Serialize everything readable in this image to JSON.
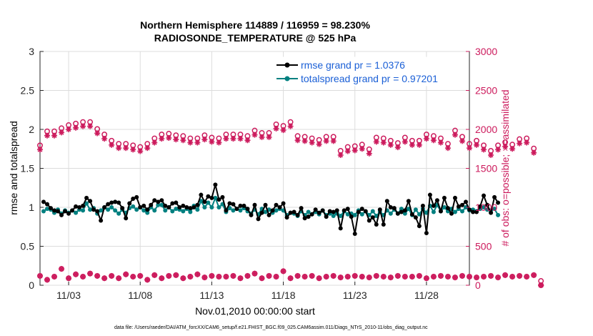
{
  "chart_data": {
    "type": "line",
    "title_line1": "Northern Hemisphere 114889 / 116959 = 98.230%",
    "title_line2": "RADIOSONDE_TEMPERATURE @ 525 hPa",
    "ylabel_left": "rmse and totalspread",
    "ylabel_right": "# of obs: o=possible; ×=assimilated",
    "xlabel": "Nov.01,2010 00:00:00 start",
    "footer": "data file: /Users/raeder/DAI/ATM_forcXX/CAM6_setup/f.e21.FHIST_BGC.f09_025.CAM6assim.011/Diags_NTrS_2010-11/obs_diag_output.nc",
    "ylim_left": [
      0,
      3
    ],
    "ylim_right": [
      0,
      3000
    ],
    "xlim": [
      1,
      31
    ],
    "y_ticks_left": [
      "0",
      "0.5",
      "1",
      "1.5",
      "2",
      "2.5",
      "3"
    ],
    "y_ticks_right": [
      "0",
      "500",
      "1000",
      "1500",
      "2000",
      "2500",
      "3000"
    ],
    "x_ticks": [
      {
        "x": 3,
        "label": "11/03"
      },
      {
        "x": 8,
        "label": "11/08"
      },
      {
        "x": 13,
        "label": "11/13"
      },
      {
        "x": 18,
        "label": "11/18"
      },
      {
        "x": 23,
        "label": "11/23"
      },
      {
        "x": 28,
        "label": "11/28"
      }
    ],
    "grid": true,
    "legend_placement": "top-right",
    "colors": {
      "rmse": "#000000",
      "spread": "#008080",
      "count": "#cc1a5c",
      "legend_text": "#1a5fd6"
    },
    "series": [
      {
        "name": "rmse grand pr = 1.0376",
        "axis": "left",
        "x_start": 1.25,
        "x_step": 0.25,
        "values": [
          1.07,
          1.04,
          0.99,
          0.96,
          0.95,
          0.9,
          0.95,
          0.92,
          0.96,
          1.01,
          1.0,
          1.02,
          1.12,
          1.08,
          0.97,
          0.95,
          0.83,
          1.0,
          1.04,
          1.06,
          1.07,
          1.06,
          0.99,
          0.86,
          1.05,
          1.11,
          1.13,
          1.0,
          1.02,
          0.97,
          1.03,
          1.09,
          1.07,
          1.09,
          1.02,
          1.0,
          1.05,
          1.06,
          1.0,
          1.02,
          1.0,
          0.99,
          1.0,
          1.03,
          1.16,
          1.07,
          1.14,
          1.12,
          1.29,
          1.1,
          1.13,
          0.96,
          1.05,
          1.04,
          0.98,
          1.02,
          1.02,
          0.98,
          0.9,
          1.03,
          0.85,
          0.93,
          1.03,
          0.9,
          0.96,
          1.03,
          1.0,
          1.05,
          0.87,
          0.93,
          0.94,
          0.9,
          0.99,
          0.86,
          0.88,
          0.91,
          0.97,
          0.93,
          0.96,
          0.88,
          0.95,
          0.94,
          0.96,
          0.73,
          0.96,
          0.98,
          0.88,
          0.66,
          0.94,
          0.98,
          0.95,
          0.83,
          0.87,
          0.78,
          0.97,
          0.78,
          1.08,
          1.0,
          0.99,
          0.92,
          0.94,
          0.96,
          1.08,
          0.91,
          0.87,
          0.76,
          1.02,
          0.67,
          1.16,
          1.02,
          1.09,
          0.95,
          1.12,
          0.99,
          0.92,
          1.12,
          1.01,
          1.03,
          1.07,
          0.97,
          0.94,
          0.94,
          1.01,
          1.15,
          1.03,
          0.93,
          1.13,
          1.06
        ]
      },
      {
        "name": "totalspread grand pr = 0.97201",
        "axis": "left",
        "x_start": 1.25,
        "x_step": 0.25,
        "values": [
          0.95,
          0.98,
          0.97,
          0.93,
          0.97,
          0.92,
          0.96,
          0.93,
          0.96,
          0.93,
          0.97,
          0.96,
          1.05,
          0.97,
          0.99,
          0.92,
          0.96,
          1.0,
          0.97,
          1.0,
          0.96,
          0.92,
          0.97,
          0.93,
          0.99,
          1.01,
          0.97,
          1.0,
          0.96,
          0.93,
          1.0,
          0.96,
          1.03,
          1.03,
          0.96,
          1.0,
          0.95,
          0.98,
          0.97,
          0.95,
          0.98,
          0.94,
          1.02,
          0.97,
          1.08,
          1.0,
          1.06,
          1.0,
          1.12,
          1.0,
          1.04,
          0.94,
          0.99,
          0.96,
          0.98,
          0.96,
          0.99,
          0.95,
          0.92,
          0.97,
          0.91,
          0.98,
          0.94,
          0.97,
          0.93,
          0.96,
          0.98,
          0.96,
          0.9,
          0.93,
          0.92,
          0.89,
          0.95,
          0.9,
          0.94,
          0.91,
          0.94,
          0.91,
          0.96,
          0.9,
          0.92,
          0.89,
          0.92,
          0.89,
          0.95,
          0.91,
          0.92,
          0.9,
          0.96,
          0.91,
          0.95,
          0.9,
          0.95,
          0.89,
          0.94,
          0.9,
          0.96,
          0.92,
          0.97,
          0.92,
          0.98,
          0.92,
          0.98,
          0.9,
          0.97,
          0.91,
          0.98,
          0.93,
          1.02,
          0.94,
          1.03,
          0.95,
          1.0,
          0.95,
          0.98,
          0.94,
          0.98,
          0.95,
          1.0,
          0.96,
          0.97,
          0.95,
          0.98,
          1.0,
          0.97,
          0.96,
          0.98,
          0.9
        ]
      },
      {
        "name": "obs possible/assimilated",
        "axis": "right",
        "x_start": 1.0,
        "x_step": 0.5,
        "possible": [
          1740,
          1920,
          1920,
          1960,
          2000,
          2020,
          2040,
          2040,
          1950,
          1880,
          1800,
          1760,
          1760,
          1740,
          1720,
          1760,
          1830,
          1880,
          1890,
          1870,
          1860,
          1830,
          1830,
          1870,
          1840,
          1830,
          1880,
          1880,
          1880,
          1860,
          1930,
          1900,
          1900,
          2010,
          1990,
          2040,
          1860,
          1850,
          1830,
          1810,
          1850,
          1850,
          1670,
          1720,
          1730,
          1750,
          1690,
          1840,
          1830,
          1800,
          1770,
          1840,
          1800,
          1800,
          1880,
          1860,
          1830,
          1760,
          1930,
          1850,
          1760,
          1800,
          1740,
          1670,
          1740,
          1780,
          1750,
          1820,
          1830,
          1700,
          0
        ],
        "assimilated": [
          1740,
          1920,
          1920,
          1960,
          2000,
          2020,
          2040,
          2040,
          1950,
          1880,
          1800,
          1760,
          1760,
          1740,
          1720,
          1760,
          1830,
          1880,
          1890,
          1870,
          1860,
          1830,
          1830,
          1870,
          1840,
          1830,
          1880,
          1880,
          1880,
          1860,
          1930,
          1900,
          1900,
          2010,
          1990,
          2040,
          1860,
          1850,
          1830,
          1810,
          1850,
          1850,
          1670,
          1720,
          1730,
          1750,
          1690,
          1840,
          1830,
          1800,
          1770,
          1840,
          1800,
          1800,
          1880,
          1860,
          1830,
          1760,
          1930,
          1850,
          1760,
          1800,
          1740,
          1670,
          1740,
          1780,
          1750,
          1820,
          1830,
          1700,
          0
        ],
        "low_possible": [
          120,
          70,
          110,
          210,
          90,
          140,
          110,
          150,
          120,
          90,
          120,
          90,
          140,
          110,
          120,
          70,
          130,
          90,
          120,
          130,
          90,
          110,
          140,
          100,
          120,
          110,
          110,
          120,
          90,
          120,
          150,
          90,
          120,
          110,
          180,
          90,
          120,
          110,
          120,
          90,
          110,
          120,
          100,
          110,
          120,
          110,
          100,
          120,
          110,
          100,
          120,
          110,
          110,
          120,
          90,
          110,
          120,
          110,
          100,
          120,
          110,
          100,
          110,
          120,
          100,
          130,
          110,
          120,
          110,
          130,
          0
        ],
        "low_assimilated": [
          120,
          70,
          110,
          210,
          90,
          140,
          110,
          150,
          120,
          90,
          120,
          90,
          140,
          110,
          120,
          70,
          130,
          90,
          120,
          130,
          90,
          110,
          140,
          100,
          120,
          110,
          110,
          120,
          90,
          120,
          150,
          90,
          120,
          110,
          180,
          90,
          120,
          110,
          120,
          90,
          110,
          120,
          100,
          110,
          120,
          110,
          100,
          120,
          110,
          100,
          120,
          110,
          110,
          120,
          90,
          110,
          120,
          110,
          100,
          120,
          110,
          100,
          110,
          120,
          100,
          130,
          110,
          120,
          110,
          130,
          0
        ]
      }
    ]
  }
}
